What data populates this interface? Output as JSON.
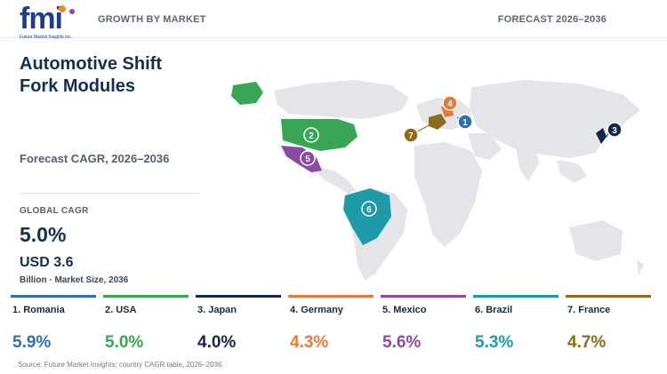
{
  "header": {
    "logo_text": "fmi",
    "logo_sub": "Future Market Insights Inc.",
    "left_kicker": "GROWTH BY MARKET",
    "right_kicker": "FORECAST 2026–2036"
  },
  "title_line1": "Automotive Shift",
  "title_line2": "Fork Modules",
  "cagr_label": "Forecast CAGR, 2026–2036",
  "global": {
    "label": "GLOBAL CAGR",
    "value": "5.0%",
    "market_value": "USD 3.6",
    "market_note": "Billion · Market Size, 2036"
  },
  "countries": [
    {
      "rank": "1",
      "name": "1. Romania",
      "value": "5.9%",
      "color": "#2f6fb3"
    },
    {
      "rank": "2",
      "name": "2. USA",
      "value": "5.0%",
      "color": "#3aa655"
    },
    {
      "rank": "3",
      "name": "3. Japan",
      "value": "4.0%",
      "color": "#10284a"
    },
    {
      "rank": "4",
      "name": "4. Germany",
      "value": "4.3%",
      "color": "#e07b39"
    },
    {
      "rank": "5",
      "name": "5. Mexico",
      "value": "5.6%",
      "color": "#8a4aa6"
    },
    {
      "rank": "6",
      "name": "6. Brazil",
      "value": "5.3%",
      "color": "#1e9aa8"
    },
    {
      "rank": "7",
      "name": "7. France",
      "value": "4.7%",
      "color": "#8f6a1a"
    }
  ],
  "map": {
    "land_color": "#e3e5e8",
    "greenland_color": "#3aa655"
  },
  "source": "Source: Future Market Insights; country CAGR table, 2026–2036."
}
